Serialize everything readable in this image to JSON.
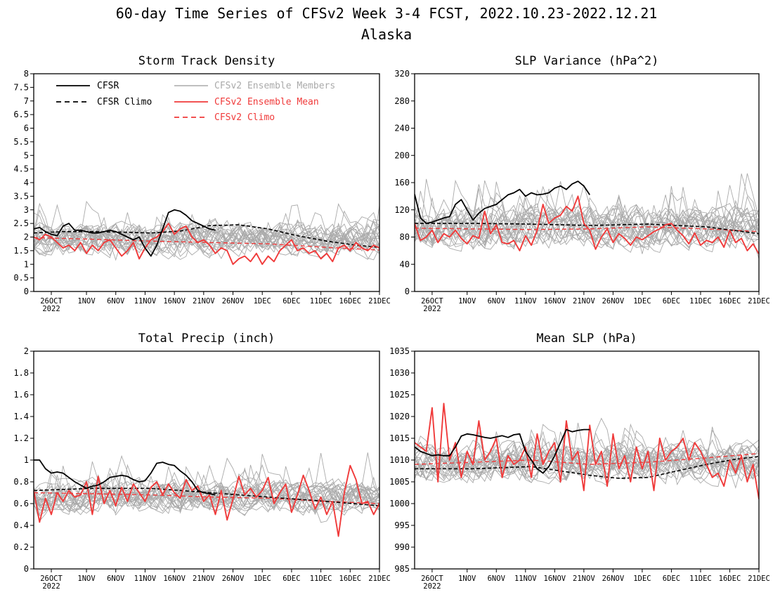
{
  "figure": {
    "title_line1": "60-day Time Series of CFSv2 Week 3-4 FCST, 2022.10.23-2022.12.21",
    "title_line2": "Alaska"
  },
  "legend": {
    "cfsr": "CFSR",
    "cfsr_climo": "CFSR Climo",
    "members": "CFSv2 Ensemble Members",
    "mean": "CFSv2 Ensemble Mean",
    "cfsv2_climo": "CFSv2 Climo"
  },
  "colors": {
    "cfsr": "#000000",
    "cfsr_climo": "#000000",
    "members": "#aaaaaa",
    "mean": "#f03a3a",
    "cfsv2_climo": "#f03a3a"
  },
  "x_axis": {
    "ticks": [
      {
        "day": 3,
        "label": "26OCT",
        "sublabel": "2022"
      },
      {
        "day": 9,
        "label": "1NOV"
      },
      {
        "day": 14,
        "label": "6NOV"
      },
      {
        "day": 19,
        "label": "11NOV"
      },
      {
        "day": 24,
        "label": "16NOV"
      },
      {
        "day": 29,
        "label": "21NOV"
      },
      {
        "day": 34,
        "label": "26NOV"
      },
      {
        "day": 39,
        "label": "1DEC"
      },
      {
        "day": 44,
        "label": "6DEC"
      },
      {
        "day": 49,
        "label": "11DEC"
      },
      {
        "day": 54,
        "label": "16DEC"
      },
      {
        "day": 59,
        "label": "21DEC"
      }
    ]
  },
  "chart_data": [
    {
      "type": "line",
      "title": "Storm Track Density",
      "ylim": [
        0,
        8
      ],
      "yticks": [
        0,
        0.5,
        1,
        1.5,
        2,
        2.5,
        3,
        3.5,
        4,
        4.5,
        5,
        5.5,
        6,
        6.5,
        7,
        7.5,
        8
      ],
      "xlim": [
        0,
        59
      ],
      "legend": "top-left",
      "series": {
        "cfsr": {
          "x": [
            0,
            1,
            2,
            3,
            4,
            5,
            6,
            7,
            8,
            9,
            10,
            11,
            12,
            13,
            14,
            15,
            16,
            17,
            18,
            19,
            20,
            21,
            22,
            23,
            24,
            25,
            26,
            27,
            28,
            29,
            30,
            31
          ],
          "y": [
            2.3,
            2.35,
            2.2,
            2.1,
            2.05,
            2.4,
            2.5,
            2.25,
            2.25,
            2.2,
            2.15,
            2.15,
            2.2,
            2.25,
            2.2,
            2.1,
            2.0,
            1.9,
            2.0,
            1.6,
            1.3,
            1.7,
            2.3,
            2.9,
            3.0,
            2.95,
            2.8,
            2.6,
            2.5,
            2.4,
            2.3,
            2.25
          ]
        },
        "cfsr_climo": {
          "x": [
            0,
            5,
            10,
            15,
            20,
            25,
            30,
            35,
            40,
            45,
            50,
            55,
            59
          ],
          "y": [
            2.15,
            2.2,
            2.2,
            2.18,
            2.15,
            2.22,
            2.42,
            2.45,
            2.3,
            2.05,
            1.85,
            1.7,
            1.62
          ]
        },
        "mean": {
          "x": [
            0,
            1,
            2,
            3,
            4,
            5,
            6,
            7,
            8,
            9,
            10,
            11,
            12,
            13,
            14,
            15,
            16,
            17,
            18,
            19,
            20,
            21,
            22,
            23,
            24,
            25,
            26,
            27,
            28,
            29,
            30,
            31,
            32,
            33,
            34,
            35,
            36,
            37,
            38,
            39,
            40,
            41,
            42,
            43,
            44,
            45,
            46,
            47,
            48,
            49,
            50,
            51,
            52,
            53,
            54,
            55,
            56,
            57,
            58,
            59
          ],
          "y": [
            2.0,
            1.9,
            2.1,
            2.0,
            1.8,
            1.6,
            1.7,
            1.5,
            1.8,
            1.4,
            1.7,
            1.5,
            1.8,
            1.9,
            1.6,
            1.3,
            1.5,
            1.8,
            1.2,
            1.6,
            1.9,
            2.0,
            2.2,
            2.5,
            2.1,
            2.3,
            2.4,
            2.0,
            1.8,
            1.9,
            1.7,
            1.4,
            1.6,
            1.5,
            1.0,
            1.2,
            1.3,
            1.1,
            1.4,
            1.0,
            1.3,
            1.1,
            1.5,
            1.7,
            1.9,
            1.5,
            1.6,
            1.4,
            1.5,
            1.2,
            1.4,
            1.1,
            1.6,
            1.7,
            1.5,
            1.8,
            1.6,
            1.5,
            1.7,
            1.6
          ]
        },
        "cfsv2_climo": {
          "x": [
            0,
            10,
            20,
            30,
            40,
            50,
            59
          ],
          "y": [
            1.98,
            1.92,
            1.85,
            1.8,
            1.75,
            1.62,
            1.52
          ]
        }
      },
      "members": {
        "count": 24,
        "seed": 11,
        "base": 1.9,
        "spread": 0.9,
        "spike": 1.4,
        "ymin": 0.3,
        "ymax": 5.2
      }
    },
    {
      "type": "line",
      "title": "SLP Variance (hPa^2)",
      "ylim": [
        0,
        320
      ],
      "yticks": [
        0,
        40,
        80,
        120,
        160,
        200,
        240,
        280,
        320
      ],
      "xlim": [
        0,
        59
      ],
      "series": {
        "cfsr": {
          "x": [
            0,
            1,
            2,
            3,
            4,
            5,
            6,
            7,
            8,
            9,
            10,
            11,
            12,
            13,
            14,
            15,
            16,
            17,
            18,
            19,
            20,
            21,
            22,
            23,
            24,
            25,
            26,
            27,
            28,
            29,
            30
          ],
          "y": [
            143,
            108,
            100,
            102,
            105,
            108,
            110,
            128,
            135,
            120,
            105,
            115,
            122,
            125,
            128,
            135,
            142,
            145,
            150,
            140,
            145,
            142,
            143,
            145,
            152,
            155,
            150,
            158,
            162,
            155,
            142
          ]
        },
        "cfsr_climo": {
          "x": [
            0,
            10,
            20,
            30,
            40,
            50,
            59
          ],
          "y": [
            100,
            100,
            99,
            97,
            99,
            95,
            85
          ]
        },
        "mean": {
          "x": [
            0,
            1,
            2,
            3,
            4,
            5,
            6,
            7,
            8,
            9,
            10,
            11,
            12,
            13,
            14,
            15,
            16,
            17,
            18,
            19,
            20,
            21,
            22,
            23,
            24,
            25,
            26,
            27,
            28,
            29,
            30,
            31,
            32,
            33,
            34,
            35,
            36,
            37,
            38,
            39,
            40,
            41,
            42,
            43,
            44,
            45,
            46,
            47,
            48,
            49,
            50,
            51,
            52,
            53,
            54,
            55,
            56,
            57,
            58,
            59
          ],
          "y": [
            100,
            75,
            80,
            90,
            72,
            85,
            80,
            90,
            78,
            70,
            82,
            78,
            118,
            85,
            98,
            72,
            70,
            75,
            60,
            82,
            68,
            90,
            128,
            100,
            108,
            112,
            125,
            118,
            140,
            100,
            90,
            62,
            80,
            92,
            72,
            85,
            78,
            68,
            80,
            76,
            82,
            88,
            92,
            98,
            100,
            90,
            82,
            70,
            86,
            68,
            75,
            72,
            80,
            65,
            90,
            72,
            78,
            60,
            70,
            55
          ]
        },
        "cfsv2_climo": {
          "x": [
            0,
            10,
            20,
            30,
            40,
            50,
            59
          ],
          "y": [
            93,
            92,
            91,
            92,
            95,
            92,
            88
          ]
        }
      },
      "members": {
        "count": 24,
        "seed": 23,
        "base": 95,
        "spread": 45,
        "spike": 80,
        "ymin": 25,
        "ymax": 290
      }
    },
    {
      "type": "line",
      "title": "Total Precip (inch)",
      "ylim": [
        0,
        2
      ],
      "yticks": [
        0,
        0.2,
        0.4,
        0.6,
        0.8,
        1,
        1.2,
        1.4,
        1.6,
        1.8,
        2
      ],
      "xlim": [
        0,
        59
      ],
      "series": {
        "cfsr": {
          "x": [
            0,
            1,
            2,
            3,
            4,
            5,
            6,
            7,
            8,
            9,
            10,
            11,
            12,
            13,
            14,
            15,
            16,
            17,
            18,
            19,
            20,
            21,
            22,
            23,
            24,
            25,
            26,
            27,
            28,
            29,
            30,
            31
          ],
          "y": [
            1.0,
            1.0,
            0.92,
            0.88,
            0.89,
            0.88,
            0.84,
            0.8,
            0.77,
            0.74,
            0.76,
            0.77,
            0.8,
            0.84,
            0.85,
            0.86,
            0.85,
            0.82,
            0.8,
            0.81,
            0.88,
            0.97,
            0.98,
            0.96,
            0.95,
            0.9,
            0.86,
            0.8,
            0.72,
            0.7,
            0.69,
            0.68
          ]
        },
        "cfsr_climo": {
          "x": [
            0,
            10,
            20,
            30,
            40,
            50,
            59
          ],
          "y": [
            0.72,
            0.74,
            0.74,
            0.7,
            0.66,
            0.62,
            0.58
          ]
        },
        "mean": {
          "x": [
            0,
            1,
            2,
            3,
            4,
            5,
            6,
            7,
            8,
            9,
            10,
            11,
            12,
            13,
            14,
            15,
            16,
            17,
            18,
            19,
            20,
            21,
            22,
            23,
            24,
            25,
            26,
            27,
            28,
            29,
            30,
            31,
            32,
            33,
            34,
            35,
            36,
            37,
            38,
            39,
            40,
            41,
            42,
            43,
            44,
            45,
            46,
            47,
            48,
            49,
            50,
            51,
            52,
            53,
            54,
            55,
            56,
            57,
            58,
            59
          ],
          "y": [
            0.72,
            0.43,
            0.65,
            0.5,
            0.7,
            0.62,
            0.72,
            0.66,
            0.68,
            0.8,
            0.5,
            0.85,
            0.6,
            0.72,
            0.58,
            0.75,
            0.62,
            0.78,
            0.7,
            0.62,
            0.75,
            0.8,
            0.68,
            0.78,
            0.7,
            0.65,
            0.82,
            0.72,
            0.76,
            0.62,
            0.68,
            0.5,
            0.72,
            0.45,
            0.64,
            0.85,
            0.68,
            0.74,
            0.66,
            0.72,
            0.84,
            0.6,
            0.7,
            0.78,
            0.52,
            0.68,
            0.86,
            0.72,
            0.55,
            0.66,
            0.5,
            0.62,
            0.3,
            0.7,
            0.95,
            0.82,
            0.6,
            0.62,
            0.5,
            0.6
          ]
        },
        "cfsv2_climo": {
          "x": [
            0,
            10,
            20,
            30,
            40,
            50,
            59
          ],
          "y": [
            0.7,
            0.69,
            0.68,
            0.66,
            0.65,
            0.62,
            0.6
          ]
        }
      },
      "members": {
        "count": 24,
        "seed": 37,
        "base": 0.66,
        "spread": 0.22,
        "spike": 0.45,
        "ymin": 0.1,
        "ymax": 1.36
      }
    },
    {
      "type": "line",
      "title": "Mean SLP (hPa)",
      "ylim": [
        985,
        1035
      ],
      "yticks": [
        985,
        990,
        995,
        1000,
        1005,
        1010,
        1015,
        1020,
        1025,
        1030,
        1035
      ],
      "xlim": [
        0,
        59
      ],
      "series": {
        "cfsr": {
          "x": [
            0,
            1,
            2,
            3,
            4,
            5,
            6,
            7,
            8,
            9,
            10,
            11,
            12,
            13,
            14,
            15,
            16,
            17,
            18,
            19,
            20,
            21,
            22,
            23,
            24,
            25,
            26,
            27,
            28,
            29,
            30
          ],
          "y": [
            1013,
            1012,
            1011.5,
            1011,
            1011.2,
            1011,
            1011,
            1013,
            1015.5,
            1016,
            1015.8,
            1015.5,
            1015.2,
            1015,
            1015.3,
            1015.6,
            1015.2,
            1015.8,
            1016,
            1012,
            1010,
            1008,
            1007,
            1008.5,
            1011,
            1014,
            1017,
            1016.5,
            1016.8,
            1017,
            1017
          ]
        },
        "cfsr_climo": {
          "x": [
            0,
            10,
            20,
            25,
            30,
            35,
            40,
            45,
            50,
            55,
            59
          ],
          "y": [
            1008,
            1008,
            1008.5,
            1007.5,
            1006.5,
            1005.8,
            1006,
            1007.5,
            1009,
            1010.2,
            1010.8
          ]
        },
        "mean": {
          "x": [
            0,
            1,
            2,
            3,
            4,
            5,
            6,
            7,
            8,
            9,
            10,
            11,
            12,
            13,
            14,
            15,
            16,
            17,
            18,
            19,
            20,
            21,
            22,
            23,
            24,
            25,
            26,
            27,
            28,
            29,
            30,
            31,
            32,
            33,
            34,
            35,
            36,
            37,
            38,
            39,
            40,
            41,
            42,
            43,
            44,
            45,
            46,
            47,
            48,
            49,
            50,
            51,
            52,
            53,
            54,
            55,
            56,
            57,
            58,
            59
          ],
          "y": [
            1014,
            1013,
            1012,
            1022,
            1005,
            1023,
            1010,
            1014,
            1006,
            1012,
            1009,
            1019,
            1010,
            1012,
            1015,
            1006,
            1011,
            1009,
            1010,
            1013,
            1006,
            1016,
            1009,
            1012,
            1014,
            1005,
            1019,
            1010,
            1012,
            1003,
            1018,
            1009,
            1012,
            1004,
            1016,
            1008,
            1011,
            1005,
            1013,
            1008,
            1012,
            1003,
            1015,
            1010,
            1012,
            1013,
            1015,
            1010,
            1014,
            1012,
            1009,
            1006,
            1007,
            1004,
            1010,
            1007,
            1011,
            1005,
            1009,
            1001
          ]
        },
        "cfsv2_climo": {
          "x": [
            0,
            10,
            20,
            30,
            40,
            50,
            59
          ],
          "y": [
            1009,
            1009.5,
            1010,
            1009,
            1009.5,
            1010.5,
            1011.5
          ]
        }
      },
      "members": {
        "count": 24,
        "seed": 53,
        "base": 1009.5,
        "spread": 6.5,
        "spike": 10,
        "ymin": 995,
        "ymax": 1032
      }
    }
  ]
}
